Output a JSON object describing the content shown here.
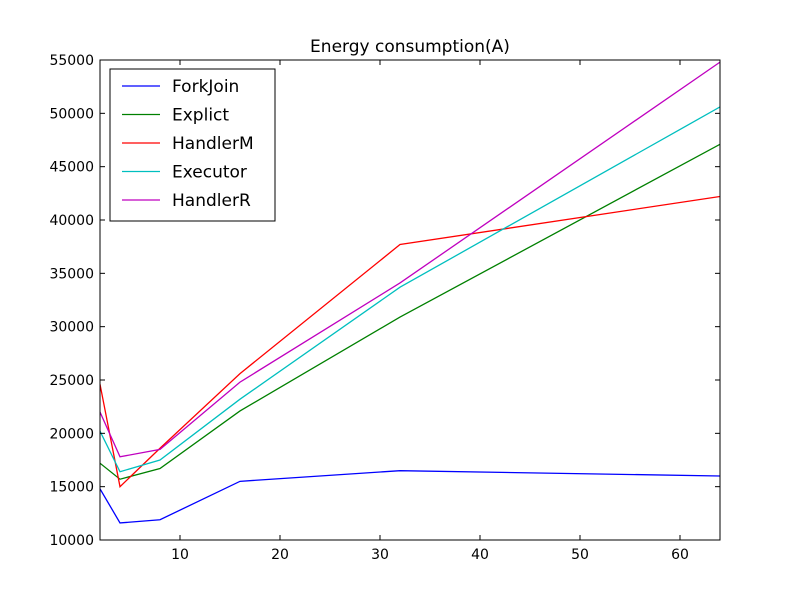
{
  "chart_data": {
    "type": "line",
    "title": "Energy consumption(A)",
    "xlabel": "",
    "ylabel": "",
    "xlim": [
      2,
      64
    ],
    "ylim": [
      10000,
      55000
    ],
    "xticks": [
      10,
      20,
      30,
      40,
      50,
      60
    ],
    "yticks": [
      10000,
      15000,
      20000,
      25000,
      30000,
      35000,
      40000,
      45000,
      50000,
      55000
    ],
    "legend_position": "top-left",
    "grid": false,
    "x": [
      2,
      4,
      8,
      16,
      32,
      64
    ],
    "series": [
      {
        "name": "ForkJoin",
        "color": "#0000ff",
        "values": [
          14800,
          11600,
          11900,
          15500,
          16500,
          16000
        ]
      },
      {
        "name": "Explict",
        "color": "#008000",
        "values": [
          17200,
          15700,
          16700,
          22100,
          30900,
          47100
        ]
      },
      {
        "name": "HandlerM",
        "color": "#ff0000",
        "values": [
          24600,
          15000,
          18600,
          25600,
          37700,
          42200
        ]
      },
      {
        "name": "Executor",
        "color": "#00bfbf",
        "values": [
          20200,
          16400,
          17500,
          23200,
          33700,
          50600
        ]
      },
      {
        "name": "HandlerR",
        "color": "#bf00bf",
        "values": [
          22000,
          17800,
          18500,
          24800,
          34100,
          54800
        ]
      }
    ]
  }
}
